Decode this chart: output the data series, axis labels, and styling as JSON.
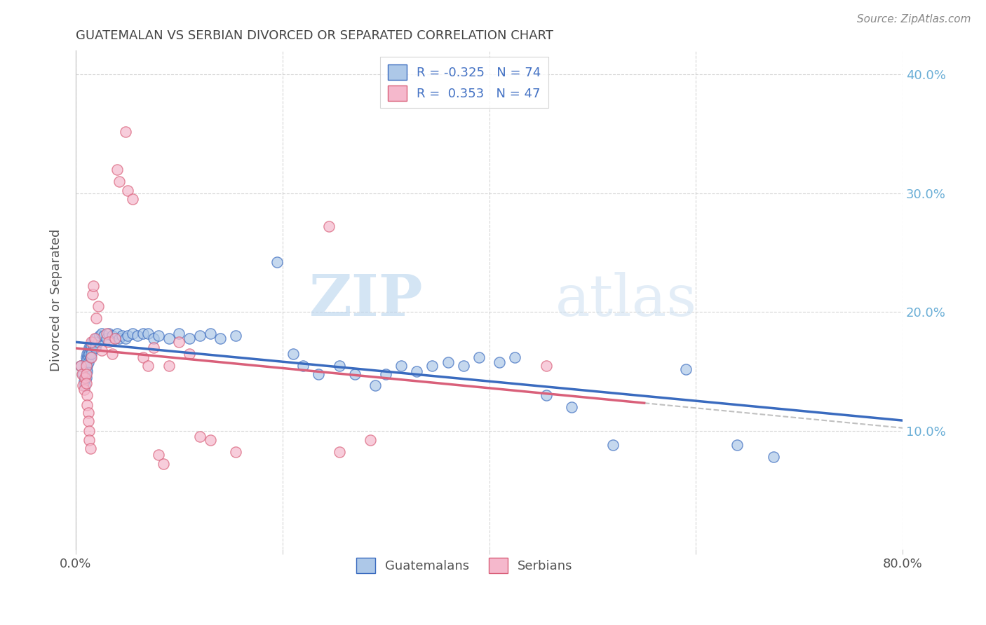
{
  "title": "GUATEMALAN VS SERBIAN DIVORCED OR SEPARATED CORRELATION CHART",
  "source": "Source: ZipAtlas.com",
  "ylabel": "Divorced or Separated",
  "xlim": [
    0.0,
    0.8
  ],
  "ylim": [
    0.0,
    0.42
  ],
  "yticks": [
    0.1,
    0.2,
    0.3,
    0.4
  ],
  "ytick_labels": [
    "10.0%",
    "20.0%",
    "30.0%",
    "40.0%"
  ],
  "xticks": [
    0.0,
    0.2,
    0.4,
    0.6,
    0.8
  ],
  "guatemalan_color": "#adc8e8",
  "serbian_color": "#f5b8cc",
  "guatemalan_line_color": "#3a6bbf",
  "serbian_line_color": "#d9607a",
  "legend_guatemalan_label": "R = -0.325   N = 74",
  "legend_serbian_label": "R =  0.353   N = 47",
  "watermark_zip": "ZIP",
  "watermark_atlas": "atlas",
  "background_color": "#ffffff",
  "grid_color": "#cccccc",
  "axis_color": "#cccccc",
  "tick_label_color": "#6aaed6",
  "title_color": "#444444",
  "guatemalan_points": [
    [
      0.005,
      0.155
    ],
    [
      0.007,
      0.148
    ],
    [
      0.008,
      0.142
    ],
    [
      0.009,
      0.138
    ],
    [
      0.01,
      0.162
    ],
    [
      0.01,
      0.158
    ],
    [
      0.01,
      0.152
    ],
    [
      0.01,
      0.145
    ],
    [
      0.011,
      0.165
    ],
    [
      0.011,
      0.16
    ],
    [
      0.011,
      0.155
    ],
    [
      0.011,
      0.15
    ],
    [
      0.012,
      0.168
    ],
    [
      0.012,
      0.163
    ],
    [
      0.012,
      0.158
    ],
    [
      0.013,
      0.17
    ],
    [
      0.013,
      0.165
    ],
    [
      0.014,
      0.17
    ],
    [
      0.014,
      0.162
    ],
    [
      0.015,
      0.172
    ],
    [
      0.015,
      0.165
    ],
    [
      0.016,
      0.175
    ],
    [
      0.017,
      0.172
    ],
    [
      0.018,
      0.175
    ],
    [
      0.019,
      0.17
    ],
    [
      0.02,
      0.178
    ],
    [
      0.022,
      0.175
    ],
    [
      0.023,
      0.18
    ],
    [
      0.025,
      0.182
    ],
    [
      0.027,
      0.18
    ],
    [
      0.03,
      0.178
    ],
    [
      0.032,
      0.182
    ],
    [
      0.035,
      0.18
    ],
    [
      0.038,
      0.178
    ],
    [
      0.04,
      0.182
    ],
    [
      0.042,
      0.178
    ],
    [
      0.045,
      0.18
    ],
    [
      0.048,
      0.178
    ],
    [
      0.05,
      0.18
    ],
    [
      0.055,
      0.182
    ],
    [
      0.06,
      0.18
    ],
    [
      0.065,
      0.182
    ],
    [
      0.07,
      0.182
    ],
    [
      0.075,
      0.178
    ],
    [
      0.08,
      0.18
    ],
    [
      0.09,
      0.178
    ],
    [
      0.1,
      0.182
    ],
    [
      0.11,
      0.178
    ],
    [
      0.12,
      0.18
    ],
    [
      0.13,
      0.182
    ],
    [
      0.14,
      0.178
    ],
    [
      0.155,
      0.18
    ],
    [
      0.195,
      0.242
    ],
    [
      0.21,
      0.165
    ],
    [
      0.22,
      0.155
    ],
    [
      0.235,
      0.148
    ],
    [
      0.255,
      0.155
    ],
    [
      0.27,
      0.148
    ],
    [
      0.29,
      0.138
    ],
    [
      0.3,
      0.148
    ],
    [
      0.315,
      0.155
    ],
    [
      0.33,
      0.15
    ],
    [
      0.345,
      0.155
    ],
    [
      0.36,
      0.158
    ],
    [
      0.375,
      0.155
    ],
    [
      0.39,
      0.162
    ],
    [
      0.41,
      0.158
    ],
    [
      0.425,
      0.162
    ],
    [
      0.455,
      0.13
    ],
    [
      0.48,
      0.12
    ],
    [
      0.52,
      0.088
    ],
    [
      0.59,
      0.152
    ],
    [
      0.64,
      0.088
    ],
    [
      0.675,
      0.078
    ]
  ],
  "serbian_points": [
    [
      0.005,
      0.155
    ],
    [
      0.006,
      0.148
    ],
    [
      0.007,
      0.138
    ],
    [
      0.008,
      0.135
    ],
    [
      0.009,
      0.145
    ],
    [
      0.01,
      0.155
    ],
    [
      0.01,
      0.148
    ],
    [
      0.01,
      0.14
    ],
    [
      0.011,
      0.13
    ],
    [
      0.011,
      0.122
    ],
    [
      0.012,
      0.115
    ],
    [
      0.012,
      0.108
    ],
    [
      0.013,
      0.1
    ],
    [
      0.013,
      0.092
    ],
    [
      0.014,
      0.085
    ],
    [
      0.015,
      0.162
    ],
    [
      0.015,
      0.175
    ],
    [
      0.016,
      0.215
    ],
    [
      0.017,
      0.222
    ],
    [
      0.018,
      0.178
    ],
    [
      0.02,
      0.195
    ],
    [
      0.022,
      0.205
    ],
    [
      0.025,
      0.168
    ],
    [
      0.03,
      0.182
    ],
    [
      0.032,
      0.175
    ],
    [
      0.035,
      0.165
    ],
    [
      0.038,
      0.178
    ],
    [
      0.04,
      0.32
    ],
    [
      0.042,
      0.31
    ],
    [
      0.048,
      0.352
    ],
    [
      0.05,
      0.302
    ],
    [
      0.055,
      0.295
    ],
    [
      0.065,
      0.162
    ],
    [
      0.07,
      0.155
    ],
    [
      0.075,
      0.17
    ],
    [
      0.08,
      0.08
    ],
    [
      0.085,
      0.072
    ],
    [
      0.09,
      0.155
    ],
    [
      0.1,
      0.175
    ],
    [
      0.11,
      0.165
    ],
    [
      0.12,
      0.095
    ],
    [
      0.13,
      0.092
    ],
    [
      0.155,
      0.082
    ],
    [
      0.245,
      0.272
    ],
    [
      0.255,
      0.082
    ],
    [
      0.285,
      0.092
    ],
    [
      0.455,
      0.155
    ]
  ]
}
